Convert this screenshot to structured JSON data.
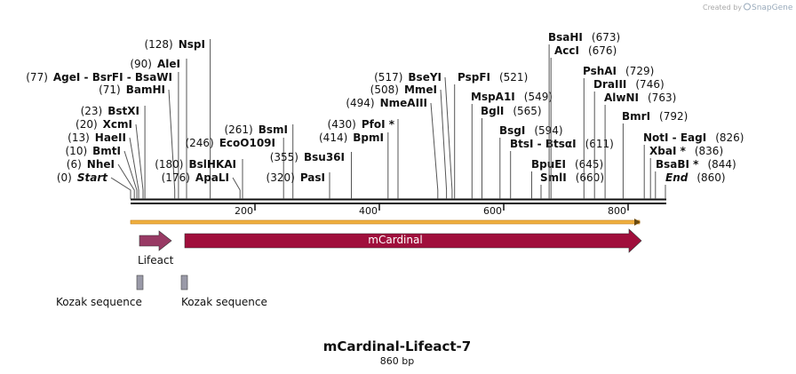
{
  "credit": {
    "created_by": "Created by",
    "brand": "SnapGene"
  },
  "map": {
    "title": "mCardinal-Lifeact-7",
    "length": {
      "value": 860,
      "label": "860 bp"
    },
    "ruler_ticks": [
      200,
      400,
      600,
      800
    ],
    "sites": [
      {
        "name": "Start",
        "position": {
          "value": 0,
          "label": "(0)"
        }
      },
      {
        "name": "NheI",
        "position": {
          "value": 6,
          "label": "(6)"
        }
      },
      {
        "name": "BmtI",
        "position": {
          "value": 10,
          "label": "(10)"
        }
      },
      {
        "name": "HaeII",
        "position": {
          "value": 13,
          "label": "(13)"
        }
      },
      {
        "name": "XcmI",
        "position": {
          "value": 20,
          "label": "(20)"
        }
      },
      {
        "name": "BstXI",
        "position": {
          "value": 23,
          "label": "(23)"
        }
      },
      {
        "name": "BamHI",
        "position": {
          "value": 71,
          "label": "(71)"
        }
      },
      {
        "name": "AgeI - BsrFI - BsaWI",
        "position": {
          "value": 77,
          "label": "(77)"
        }
      },
      {
        "name": "AleI",
        "position": {
          "value": 90,
          "label": "(90)"
        }
      },
      {
        "name": "NspI",
        "position": {
          "value": 128,
          "label": "(128)"
        }
      },
      {
        "name": "ApaLI",
        "position": {
          "value": 176,
          "label": "(176)"
        }
      },
      {
        "name": "BslHKAI",
        "position": {
          "value": 180,
          "label": "(180)"
        }
      },
      {
        "name": "EcoO109I",
        "position": {
          "value": 246,
          "label": "(246)"
        }
      },
      {
        "name": "BsmI",
        "position": {
          "value": 261,
          "label": "(261)"
        }
      },
      {
        "name": "PasI",
        "position": {
          "value": 320,
          "label": "(320)"
        }
      },
      {
        "name": "Bsu36I",
        "position": {
          "value": 355,
          "label": "(355)"
        }
      },
      {
        "name": "BpmI",
        "position": {
          "value": 414,
          "label": "(414)"
        }
      },
      {
        "name": "PfoI *",
        "position": {
          "value": 430,
          "label": "(430)"
        }
      },
      {
        "name": "NmeAIII",
        "position": {
          "value": 494,
          "label": "(494)"
        }
      },
      {
        "name": "MmeI",
        "position": {
          "value": 508,
          "label": "(508)"
        }
      },
      {
        "name": "BseYI",
        "position": {
          "value": 517,
          "label": "(517)"
        }
      },
      {
        "name": "PspFI",
        "position": {
          "value": 521,
          "label": "(521)"
        }
      },
      {
        "name": "MspA1I",
        "position": {
          "value": 549,
          "label": "(549)"
        }
      },
      {
        "name": "BglI",
        "position": {
          "value": 565,
          "label": "(565)"
        }
      },
      {
        "name": "BsgI",
        "position": {
          "value": 594,
          "label": "(594)"
        }
      },
      {
        "name": "BtsI - BtsαI",
        "position": {
          "value": 611,
          "label": "(611)"
        }
      },
      {
        "name": "BpuEI",
        "position": {
          "value": 645,
          "label": "(645)"
        }
      },
      {
        "name": "SmlI",
        "position": {
          "value": 660,
          "label": "(660)"
        }
      },
      {
        "name": "BsaHI",
        "position": {
          "value": 673,
          "label": "(673)"
        }
      },
      {
        "name": "AccI",
        "position": {
          "value": 676,
          "label": "(676)"
        }
      },
      {
        "name": "PshAI",
        "position": {
          "value": 729,
          "label": "(729)"
        }
      },
      {
        "name": "DraIII",
        "position": {
          "value": 746,
          "label": "(746)"
        }
      },
      {
        "name": "AlwNI",
        "position": {
          "value": 763,
          "label": "(763)"
        }
      },
      {
        "name": "BmrI",
        "position": {
          "value": 792,
          "label": "(792)"
        }
      },
      {
        "name": "NotI - EagI",
        "position": {
          "value": 826,
          "label": "(826)"
        }
      },
      {
        "name": "XbaI *",
        "position": {
          "value": 836,
          "label": "(836)"
        }
      },
      {
        "name": "BsaBI *",
        "position": {
          "value": 844,
          "label": "(844)"
        }
      },
      {
        "name": "End",
        "position": {
          "value": 860,
          "label": "(860)"
        }
      }
    ],
    "features": [
      {
        "name": "Lifeact"
      },
      {
        "name": "mCardinal"
      },
      {
        "name": "Kozak sequence"
      },
      {
        "name": "Kozak sequence"
      }
    ]
  }
}
